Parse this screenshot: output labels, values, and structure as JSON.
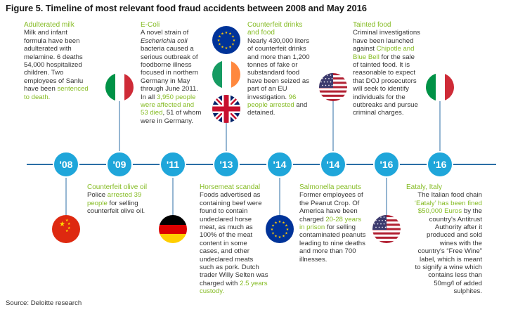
{
  "figure": {
    "title": "Figure 5. Timeline of most relevant food fraud accidents between 2008 and May 2016",
    "source": "Source: Deloitte research"
  },
  "colors": {
    "accent": "#86bc25",
    "node": "#1fa6da",
    "line": "#2b6ea6"
  },
  "years": [
    "'08",
    "'09",
    "'11",
    "'13",
    "'14",
    "'14",
    "'16",
    "'16"
  ],
  "flags": [
    "china-flag",
    "italy-flag",
    "germany-flag",
    "eu-flag",
    "ireland-flag",
    "uk-flag",
    "eu-flag",
    "usa-flag",
    "usa-flag",
    "italy-flag"
  ],
  "events": {
    "adulterated_milk": {
      "title": "Adulterated milk",
      "lines": [
        "Milk and infant",
        "formula have been",
        "adulterated with",
        "melamine. 6 deaths",
        "54,000 hospitalized",
        "children. Two",
        "employees of Sanlu",
        "have been "
      ],
      "hl1": "sentenced",
      "hl2": "to death."
    },
    "ecoli": {
      "title": "E-Coli",
      "l1": "A novel strain of",
      "italic": "Escherichia coli",
      "lines": [
        "bacteria caused a",
        "serious outbreak of",
        "foodborne illness",
        "focused in northern",
        "Germany in May",
        "through June 2011."
      ],
      "pre": "In all ",
      "hl1": "3,950 people",
      "hl2": "were affected and",
      "hl3": "53 died",
      "post1": ", 51 of whom",
      "post2": "were in Germany."
    },
    "counterfeit_drinks": {
      "title1": "Counterfeit drinks",
      "title2": "and food",
      "lines": [
        "Nearly 430,000 liters",
        "of counterfeit drinks",
        "and more than 1,200",
        "tonnes of fake or",
        "substandard food",
        "have been seized as",
        "part of an EU"
      ],
      "pre": "investigation. ",
      "hl1": "96",
      "hl2": "people arrested",
      "post1": " and",
      "post2": "detained."
    },
    "tainted_food": {
      "title": "Tainted food",
      "lines1": [
        "Criminal investigations",
        "have been launched"
      ],
      "pre": "against ",
      "hl1": "Chipotle and",
      "hl2": "Blue Bell",
      "post": " for the sale",
      "lines2": [
        "of tainted food. It is",
        "reasonable to expect",
        "that DOJ prosecutors",
        "will seek to identify",
        "individuals for the",
        "outbreaks and pursue",
        "criminal charges."
      ]
    },
    "counterfeit_oil": {
      "title": "Counterfeit olive oil",
      "pre": "Police ",
      "hl1": "arrested 39",
      "hl2": "people",
      "post1": " for selling",
      "post2": "counterfeit olive oil."
    },
    "horsemeat": {
      "title": "Horsemeat scandal",
      "lines": [
        "Foods advertised as",
        "containing beef were",
        "found to contain",
        "undeclared horse",
        "meat, as much as",
        "100% of the meat",
        "content in some",
        "cases, and other",
        "undeclared meats",
        "such as pork. Dutch",
        "trader Willy Selten was"
      ],
      "pre": "charged with ",
      "hl1": "2.5 years",
      "hl2": "custody."
    },
    "salmonella": {
      "title": "Salmonella peanuts",
      "lines1": [
        "Former employees of",
        "the Peanut Crop. Of",
        "America have been"
      ],
      "pre": "charged ",
      "hl1": "20-28 years",
      "hl2": "in prison",
      "post": " for selling",
      "lines2": [
        "contaminated peanuts",
        "leading to nine deaths",
        "and more than 700",
        "illnesses."
      ]
    },
    "eataly": {
      "title": "Eataly, Italy",
      "lines1": [
        "The Italian food chain"
      ],
      "hl1": "‘Eataly’ has been fined",
      "hl2": "$50,000 Euros",
      "post": " by the",
      "lines2": [
        "country's Antitrust",
        "Authority after it",
        "produced and sold",
        "wines with the",
        "country's “Free Wine”",
        "label, which is meant",
        "to signify a wine which",
        "contains less than",
        "50mg/l of added",
        "sulphites."
      ]
    }
  }
}
